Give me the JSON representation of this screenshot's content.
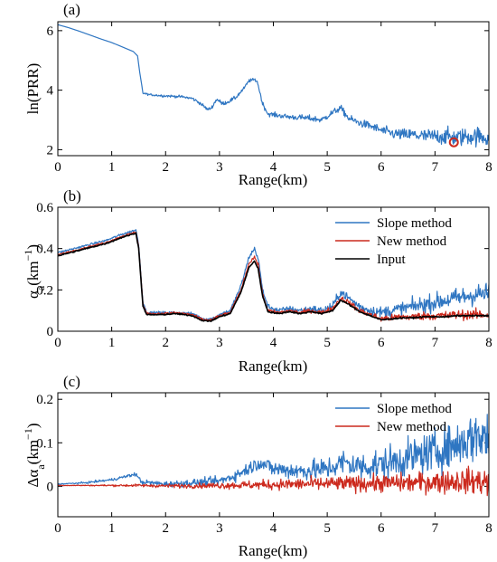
{
  "colors": {
    "slope": "#2f76c2",
    "new": "#cc2a1e",
    "input": "#000000",
    "prr": "#2f76c2"
  },
  "chart_data": [
    {
      "type": "line",
      "panel_label": "(a)",
      "xlabel": "Range(km)",
      "ylabel": "ln(PRR)",
      "xlim": [
        0,
        8
      ],
      "ylim": [
        1.8,
        6.3
      ],
      "xticks": [
        0,
        1,
        2,
        3,
        4,
        5,
        6,
        7,
        8
      ],
      "yticks": [
        2,
        4,
        6
      ],
      "grid": false,
      "annotation": "red circle marker near x=7.35, y=2.25",
      "series": [
        {
          "key": "prr",
          "x": [
            0,
            0.2,
            0.4,
            0.6,
            0.8,
            1.0,
            1.2,
            1.4,
            1.48,
            1.52,
            1.58,
            1.7,
            1.9,
            2.1,
            2.3,
            2.5,
            2.65,
            2.78,
            2.85,
            2.95,
            3.05,
            3.15,
            3.3,
            3.45,
            3.55,
            3.65,
            3.7,
            3.8,
            3.9,
            4.1,
            4.3,
            4.5,
            4.7,
            4.9,
            5.1,
            5.25,
            5.4,
            5.6,
            5.8,
            6.0,
            6.2,
            6.4,
            6.6,
            6.8,
            7.0,
            7.2,
            7.4,
            7.6,
            7.8,
            8.0
          ],
          "y": [
            6.2,
            6.1,
            5.98,
            5.85,
            5.72,
            5.6,
            5.45,
            5.3,
            5.15,
            4.6,
            3.9,
            3.85,
            3.82,
            3.8,
            3.78,
            3.72,
            3.55,
            3.35,
            3.4,
            3.7,
            3.55,
            3.6,
            3.75,
            4.05,
            4.32,
            4.35,
            4.3,
            3.55,
            3.2,
            3.15,
            3.1,
            3.08,
            3.05,
            3.0,
            3.25,
            3.4,
            3.05,
            2.9,
            2.8,
            2.65,
            2.55,
            2.5,
            2.5,
            2.45,
            2.45,
            2.45,
            2.4,
            2.45,
            2.45,
            2.4
          ],
          "noise": [
            0,
            0,
            0,
            0,
            0,
            0,
            0,
            0,
            0,
            0,
            0.03,
            0.03,
            0.04,
            0.04,
            0.04,
            0.05,
            0.05,
            0.05,
            0.05,
            0.06,
            0.06,
            0.06,
            0.06,
            0.05,
            0.05,
            0.05,
            0.05,
            0.07,
            0.07,
            0.08,
            0.08,
            0.09,
            0.1,
            0.1,
            0.1,
            0.1,
            0.12,
            0.12,
            0.13,
            0.15,
            0.17,
            0.19,
            0.21,
            0.23,
            0.25,
            0.27,
            0.28,
            0.29,
            0.3,
            0.3
          ]
        }
      ]
    },
    {
      "type": "line",
      "panel_label": "(b)",
      "xlabel": "Range(km)",
      "ylabel": "α_a(km^-1)",
      "xlim": [
        0,
        8
      ],
      "ylim": [
        0,
        0.6
      ],
      "xticks": [
        0,
        1,
        2,
        3,
        4,
        5,
        6,
        7,
        8
      ],
      "yticks": [
        0,
        0.2,
        0.4,
        0.6
      ],
      "grid": false,
      "legend_position": "top-right",
      "legend": [
        "Slope method",
        "New method",
        "Input"
      ],
      "series": [
        {
          "key": "slope",
          "name": "Slope method",
          "x": [
            0,
            0.3,
            0.6,
            0.9,
            1.2,
            1.45,
            1.5,
            1.58,
            1.65,
            1.9,
            2.2,
            2.5,
            2.7,
            2.85,
            3.0,
            3.2,
            3.4,
            3.55,
            3.65,
            3.72,
            3.8,
            3.9,
            4.1,
            4.3,
            4.5,
            4.7,
            4.9,
            5.1,
            5.25,
            5.4,
            5.6,
            5.8,
            6.0,
            6.2,
            6.4,
            6.6,
            6.8,
            7.0,
            7.2,
            7.4,
            7.6,
            7.8,
            8.0
          ],
          "y": [
            0.38,
            0.4,
            0.42,
            0.44,
            0.47,
            0.49,
            0.42,
            0.14,
            0.09,
            0.09,
            0.09,
            0.085,
            0.06,
            0.06,
            0.08,
            0.1,
            0.22,
            0.36,
            0.4,
            0.35,
            0.2,
            0.12,
            0.1,
            0.11,
            0.1,
            0.11,
            0.1,
            0.12,
            0.19,
            0.16,
            0.12,
            0.1,
            0.09,
            0.1,
            0.11,
            0.12,
            0.13,
            0.14,
            0.15,
            0.16,
            0.17,
            0.18,
            0.18
          ],
          "noise": [
            0.005,
            0.005,
            0.005,
            0.005,
            0.005,
            0.005,
            0.005,
            0.005,
            0.005,
            0.006,
            0.006,
            0.006,
            0.006,
            0.006,
            0.008,
            0.008,
            0.01,
            0.01,
            0.01,
            0.01,
            0.01,
            0.012,
            0.012,
            0.012,
            0.014,
            0.016,
            0.018,
            0.02,
            0.02,
            0.02,
            0.022,
            0.025,
            0.028,
            0.03,
            0.032,
            0.035,
            0.038,
            0.04,
            0.042,
            0.045,
            0.048,
            0.05,
            0.05
          ]
        },
        {
          "key": "new",
          "name": "New method",
          "x": [
            0,
            0.3,
            0.6,
            0.9,
            1.2,
            1.45,
            1.5,
            1.58,
            1.65,
            1.9,
            2.2,
            2.5,
            2.7,
            2.85,
            3.0,
            3.2,
            3.4,
            3.55,
            3.65,
            3.72,
            3.8,
            3.9,
            4.1,
            4.3,
            4.5,
            4.7,
            4.9,
            5.1,
            5.25,
            5.4,
            5.6,
            5.8,
            6.0,
            6.2,
            6.4,
            6.6,
            6.8,
            7.0,
            7.2,
            7.4,
            7.6,
            7.8,
            8.0
          ],
          "y": [
            0.37,
            0.39,
            0.41,
            0.43,
            0.46,
            0.48,
            0.41,
            0.13,
            0.085,
            0.085,
            0.09,
            0.08,
            0.055,
            0.055,
            0.075,
            0.09,
            0.2,
            0.33,
            0.36,
            0.32,
            0.18,
            0.1,
            0.09,
            0.1,
            0.09,
            0.1,
            0.09,
            0.11,
            0.16,
            0.14,
            0.1,
            0.08,
            0.06,
            0.065,
            0.07,
            0.07,
            0.075,
            0.075,
            0.075,
            0.08,
            0.08,
            0.08,
            0.08
          ],
          "noise": [
            0.004,
            0.004,
            0.004,
            0.004,
            0.004,
            0.004,
            0.004,
            0.004,
            0.004,
            0.005,
            0.005,
            0.005,
            0.005,
            0.005,
            0.006,
            0.006,
            0.007,
            0.007,
            0.007,
            0.007,
            0.007,
            0.008,
            0.008,
            0.008,
            0.01,
            0.01,
            0.011,
            0.012,
            0.012,
            0.012,
            0.013,
            0.014,
            0.015,
            0.016,
            0.017,
            0.018,
            0.019,
            0.02,
            0.021,
            0.022,
            0.023,
            0.024,
            0.024
          ]
        },
        {
          "key": "input",
          "name": "Input",
          "x": [
            0,
            0.3,
            0.6,
            0.9,
            1.2,
            1.45,
            1.5,
            1.58,
            1.65,
            1.9,
            2.2,
            2.5,
            2.7,
            2.85,
            3.0,
            3.2,
            3.4,
            3.55,
            3.65,
            3.72,
            3.8,
            3.9,
            4.1,
            4.3,
            4.5,
            4.7,
            4.9,
            5.1,
            5.25,
            5.4,
            5.6,
            5.8,
            6.0,
            6.2,
            6.4,
            6.6,
            6.8,
            7.0,
            7.2,
            7.4,
            7.6,
            7.8,
            8.0
          ],
          "y": [
            0.365,
            0.385,
            0.405,
            0.425,
            0.455,
            0.475,
            0.4,
            0.12,
            0.08,
            0.08,
            0.085,
            0.075,
            0.05,
            0.05,
            0.07,
            0.085,
            0.19,
            0.31,
            0.34,
            0.3,
            0.17,
            0.095,
            0.085,
            0.095,
            0.085,
            0.095,
            0.085,
            0.1,
            0.15,
            0.13,
            0.095,
            0.075,
            0.055,
            0.06,
            0.065,
            0.065,
            0.07,
            0.07,
            0.07,
            0.075,
            0.075,
            0.075,
            0.075
          ],
          "noise": [
            0.003,
            0.003,
            0.003,
            0.003,
            0.003,
            0.003,
            0.003,
            0.003,
            0.003,
            0.003,
            0.003,
            0.003,
            0.003,
            0.003,
            0.003,
            0.003,
            0.003,
            0.003,
            0.003,
            0.003,
            0.003,
            0.003,
            0.003,
            0.003,
            0.003,
            0.003,
            0.003,
            0.003,
            0.003,
            0.003,
            0.003,
            0.003,
            0.003,
            0.003,
            0.003,
            0.003,
            0.003,
            0.003,
            0.003,
            0.003,
            0.003,
            0.003,
            0.003
          ]
        }
      ]
    },
    {
      "type": "line",
      "panel_label": "(c)",
      "xlabel": "Range(km)",
      "ylabel": "Δα_a(km^-1)",
      "xlim": [
        0,
        8
      ],
      "ylim": [
        -0.07,
        0.215
      ],
      "xticks": [
        0,
        1,
        2,
        3,
        4,
        5,
        6,
        7,
        8
      ],
      "yticks": [
        0,
        0.1,
        0.2
      ],
      "grid": false,
      "legend_position": "top-right",
      "legend": [
        "Slope method",
        "New method"
      ],
      "series": [
        {
          "key": "slope",
          "name": "Slope method",
          "x": [
            0,
            0.5,
            1.0,
            1.45,
            1.55,
            2.0,
            2.5,
            3.0,
            3.3,
            3.6,
            3.75,
            4.0,
            4.5,
            5.0,
            5.3,
            5.6,
            6.0,
            6.5,
            7.0,
            7.5,
            7.8,
            8.0
          ],
          "y": [
            0.005,
            0.008,
            0.015,
            0.028,
            0.01,
            0.005,
            0.008,
            0.012,
            0.025,
            0.045,
            0.055,
            0.04,
            0.035,
            0.04,
            0.055,
            0.045,
            0.05,
            0.065,
            0.08,
            0.1,
            0.12,
            0.11
          ],
          "noise": [
            0.001,
            0.002,
            0.003,
            0.004,
            0.005,
            0.006,
            0.008,
            0.01,
            0.012,
            0.015,
            0.015,
            0.018,
            0.02,
            0.025,
            0.028,
            0.03,
            0.035,
            0.04,
            0.045,
            0.05,
            0.06,
            0.06
          ]
        },
        {
          "key": "new",
          "name": "New method",
          "x": [
            0,
            0.5,
            1.0,
            1.5,
            2.0,
            2.5,
            3.0,
            3.5,
            4.0,
            4.5,
            5.0,
            5.5,
            6.0,
            6.5,
            7.0,
            7.5,
            7.8,
            8.0
          ],
          "y": [
            0.002,
            0.002,
            0.002,
            0.002,
            0.001,
            0.001,
            0.002,
            0.003,
            0.004,
            0.005,
            0.006,
            0.006,
            0.007,
            0.008,
            0.01,
            0.012,
            0.012,
            0.01
          ],
          "noise": [
            0.001,
            0.001,
            0.002,
            0.003,
            0.004,
            0.005,
            0.007,
            0.009,
            0.011,
            0.013,
            0.015,
            0.017,
            0.019,
            0.021,
            0.024,
            0.027,
            0.03,
            0.03
          ]
        }
      ]
    }
  ]
}
